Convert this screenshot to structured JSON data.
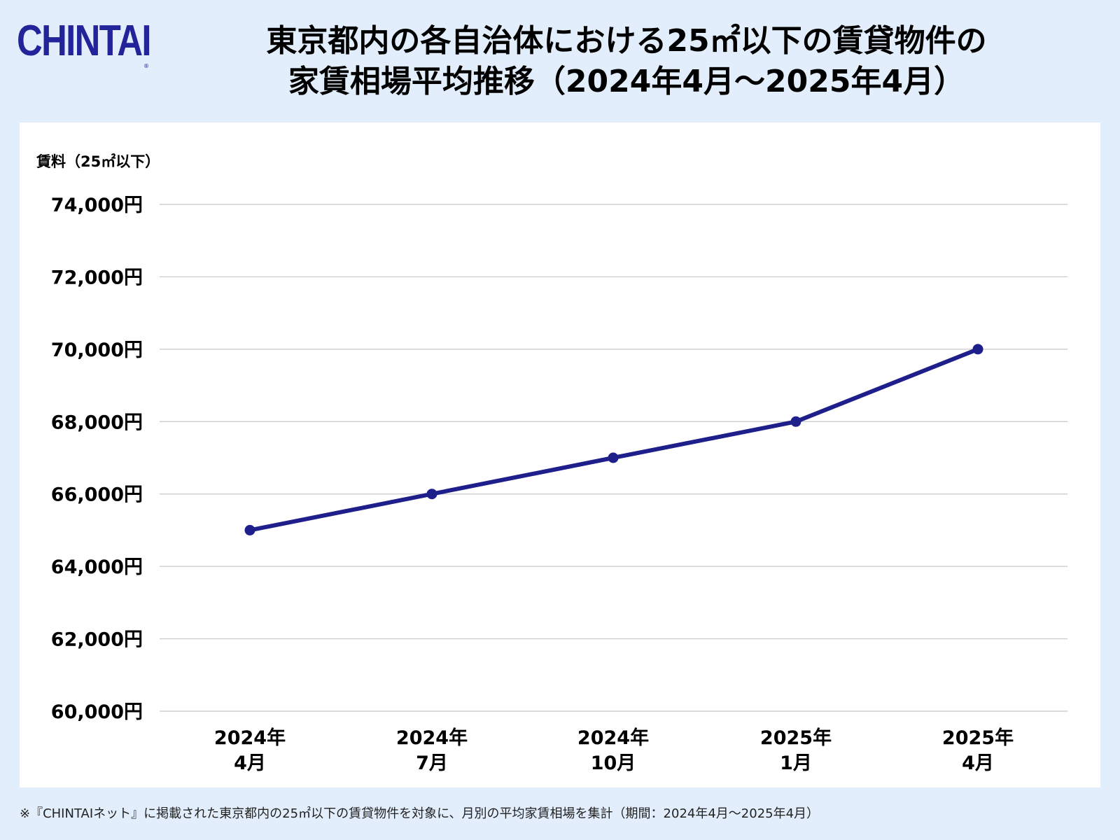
{
  "logo": {
    "text": "CHINTAI",
    "reg": "®"
  },
  "title": {
    "line1": "東京都内の各自治体における25㎡以下の賃貸物件の",
    "line2": "家賃相場平均推移（2024年4月〜2025年4月）"
  },
  "footnote": "※『CHINTAIネット』に掲載された東京都内の25㎡以下の賃貸物件を対象に、月別の平均家賃相場を集計（期間：2024年4月〜2025年4月）",
  "colors": {
    "line": "#1f1f8c",
    "grid": "#c8c8c8",
    "background": "#e3eefc",
    "panel": "#ffffff",
    "logo": "#23239a"
  },
  "chart_data": {
    "type": "line",
    "ylabel": "賃料（25㎡以下）",
    "xlabel": "",
    "ylim": [
      60000,
      74000
    ],
    "yticks": [
      60000,
      62000,
      64000,
      66000,
      68000,
      70000,
      72000,
      74000
    ],
    "ytick_labels": [
      "60,000円",
      "62,000円",
      "64,000円",
      "66,000円",
      "68,000円",
      "70,000円",
      "72,000円",
      "74,000円"
    ],
    "categories": [
      [
        "2024年",
        "4月"
      ],
      [
        "2024年",
        "7月"
      ],
      [
        "2024年",
        "10月"
      ],
      [
        "2025年",
        "1月"
      ],
      [
        "2025年",
        "4月"
      ]
    ],
    "series": [
      {
        "values": [
          65000,
          66000,
          67000,
          68000,
          70000
        ]
      }
    ],
    "grid": true,
    "legend": "none"
  }
}
